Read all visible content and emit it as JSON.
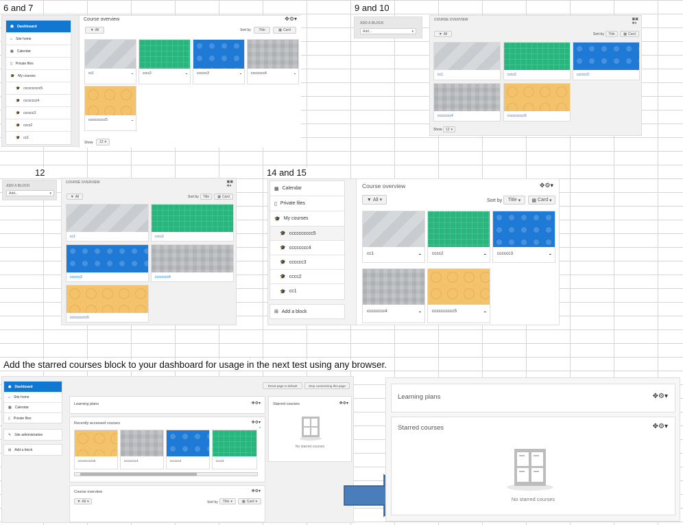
{
  "labels": {
    "p1": "6 and 7",
    "p2": "9 and 10",
    "p3": "12",
    "p4": "14 and 15",
    "instruction": "Add the starred courses block to your dashboard for usage in the next test using any browser."
  },
  "nav": {
    "dashboard": "Dashboard",
    "site_home": "Site home",
    "calendar": "Calendar",
    "private_files": "Private files",
    "my_courses": "My courses",
    "courses": [
      "cccccccccc5",
      "cccccccc4",
      "cccccc3",
      "cccc2",
      "cc1"
    ],
    "add_block": "Add a block",
    "site_admin": "Site administration"
  },
  "overview": {
    "title": "Course overview",
    "title_caps": "COURSE OVERVIEW",
    "all": "All",
    "sort_by": "Sort by",
    "title_opt": "Title",
    "card": "Card",
    "show": "Show",
    "show_num": "12"
  },
  "addblock": {
    "title": "ADD A BLOCK",
    "select": "Add..."
  },
  "courses": [
    "cc1",
    "cccc2",
    "cccccc3",
    "cccccccc4",
    "cccccccccc5"
  ],
  "recent": {
    "title": "Recently accessed courses",
    "items": [
      "cccccccccc5",
      "cccccccc4",
      "cccccc3",
      "cccc2"
    ]
  },
  "dashboard": {
    "learning_plans": "Learning plans",
    "starred": "Starred courses",
    "no_starred": "No starred courses",
    "reset": "Reset page to default",
    "stop": "Stop customising this page"
  },
  "colors": {
    "accent": "#1177d1",
    "arrow": "#4a7ebb"
  }
}
